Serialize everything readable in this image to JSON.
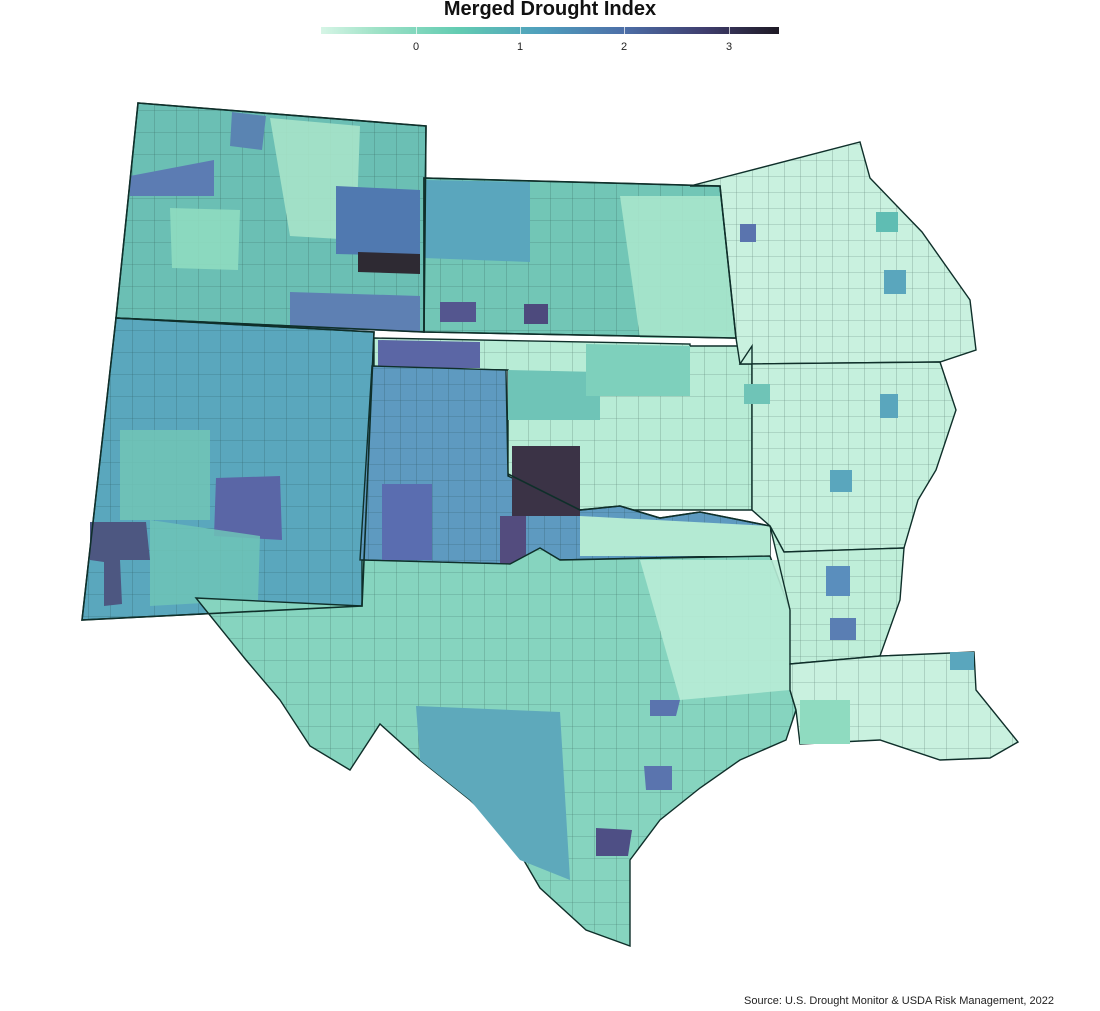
{
  "legend": {
    "title": "Merged Drought Index",
    "ticks": [
      {
        "value": 0,
        "label": "0"
      },
      {
        "value": 1,
        "label": "1"
      },
      {
        "value": 2,
        "label": "2"
      },
      {
        "value": 3,
        "label": "3"
      }
    ],
    "range": [
      -0.9,
      3.5
    ],
    "colors": [
      "#d6f5e6",
      "#9fe2c7",
      "#63ccb2",
      "#4f9fbd",
      "#4d6fa8",
      "#3f3d6d",
      "#1e1a24"
    ]
  },
  "source": "Source: U.S. Drought Monitor & USDA Risk Management, 2022"
}
